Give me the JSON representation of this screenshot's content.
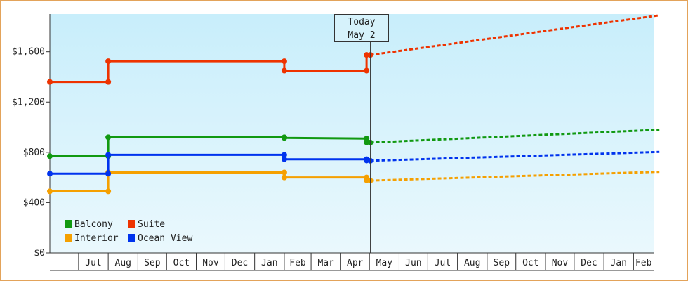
{
  "chart_data": {
    "type": "line",
    "line_shape": "step",
    "y_ticks": [
      "$0",
      "$400",
      "$800",
      "$1,200",
      "$1,600"
    ],
    "y_tick_values": [
      0,
      400,
      800,
      1200,
      1600
    ],
    "ylim": [
      0,
      1900
    ],
    "x_tick_labels": [
      "Jul",
      "Aug",
      "Sep",
      "Oct",
      "Nov",
      "Dec",
      "Jan",
      "Feb",
      "Mar",
      "Apr",
      "May",
      "Jun",
      "Jul",
      "Aug",
      "Sep",
      "Oct",
      "Nov",
      "Dec",
      "Jan",
      "Feb"
    ],
    "x_range": [
      "2021-06-01",
      "2023-02-22"
    ],
    "today": {
      "line1": "Today",
      "line2": "May 2",
      "date": "2022-05-02"
    },
    "grid": false,
    "legend_position": "bottom-left",
    "background": {
      "top": "#c8eefb",
      "bottom": "#eaf8fd"
    },
    "series": [
      {
        "name": "Balcony",
        "color": "#119911",
        "history": [
          [
            "2021-06-01",
            770
          ],
          [
            "2021-08-01",
            770
          ],
          [
            "2021-08-01",
            920
          ],
          [
            "2022-02-01",
            920
          ],
          [
            "2022-02-01",
            915
          ],
          [
            "2022-04-28",
            910
          ],
          [
            "2022-04-28",
            880
          ],
          [
            "2022-05-02",
            878
          ]
        ],
        "markers": [
          [
            "2021-06-01",
            770
          ],
          [
            "2021-08-01",
            770
          ],
          [
            "2021-08-01",
            920
          ],
          [
            "2022-02-01",
            920
          ],
          [
            "2022-02-01",
            915
          ],
          [
            "2022-04-28",
            910
          ],
          [
            "2022-04-28",
            880
          ],
          [
            "2022-05-02",
            878
          ]
        ],
        "forecast": [
          [
            "2022-05-02",
            878
          ],
          [
            "2023-02-28",
            980
          ]
        ]
      },
      {
        "name": "Suite",
        "color": "#ee3300",
        "history": [
          [
            "2021-06-01",
            1360
          ],
          [
            "2021-08-01",
            1360
          ],
          [
            "2021-08-01",
            1525
          ],
          [
            "2022-02-01",
            1525
          ],
          [
            "2022-02-01",
            1450
          ],
          [
            "2022-04-28",
            1450
          ],
          [
            "2022-04-28",
            1575
          ],
          [
            "2022-05-02",
            1575
          ]
        ],
        "markers": [
          [
            "2021-06-01",
            1360
          ],
          [
            "2021-08-01",
            1360
          ],
          [
            "2021-08-01",
            1525
          ],
          [
            "2022-02-01",
            1525
          ],
          [
            "2022-02-01",
            1450
          ],
          [
            "2022-04-28",
            1450
          ],
          [
            "2022-04-28",
            1575
          ],
          [
            "2022-05-02",
            1575
          ]
        ],
        "forecast": [
          [
            "2022-05-02",
            1575
          ],
          [
            "2023-02-28",
            1890
          ]
        ]
      },
      {
        "name": "Interior",
        "color": "#f5a000",
        "history": [
          [
            "2021-06-01",
            490
          ],
          [
            "2021-08-01",
            490
          ],
          [
            "2021-08-01",
            640
          ],
          [
            "2022-02-01",
            640
          ],
          [
            "2022-02-01",
            600
          ],
          [
            "2022-04-28",
            600
          ],
          [
            "2022-04-28",
            578
          ],
          [
            "2022-05-02",
            575
          ]
        ],
        "markers": [
          [
            "2021-06-01",
            490
          ],
          [
            "2021-08-01",
            490
          ],
          [
            "2021-08-01",
            640
          ],
          [
            "2022-02-01",
            640
          ],
          [
            "2022-02-01",
            600
          ],
          [
            "2022-04-28",
            600
          ],
          [
            "2022-04-28",
            578
          ],
          [
            "2022-05-02",
            575
          ]
        ],
        "forecast": [
          [
            "2022-05-02",
            575
          ],
          [
            "2023-02-28",
            645
          ]
        ]
      },
      {
        "name": "Ocean View",
        "color": "#0033ee",
        "history": [
          [
            "2021-06-01",
            630
          ],
          [
            "2021-08-01",
            630
          ],
          [
            "2021-08-01",
            780
          ],
          [
            "2022-02-01",
            780
          ],
          [
            "2022-02-01",
            745
          ],
          [
            "2022-04-28",
            745
          ],
          [
            "2022-04-28",
            735
          ],
          [
            "2022-05-02",
            733
          ]
        ],
        "markers": [
          [
            "2021-06-01",
            630
          ],
          [
            "2021-08-01",
            630
          ],
          [
            "2021-08-01",
            780
          ],
          [
            "2022-02-01",
            780
          ],
          [
            "2022-02-01",
            745
          ],
          [
            "2022-04-28",
            745
          ],
          [
            "2022-04-28",
            735
          ],
          [
            "2022-05-02",
            733
          ]
        ],
        "forecast": [
          [
            "2022-05-02",
            733
          ],
          [
            "2023-02-28",
            803
          ]
        ]
      }
    ]
  }
}
